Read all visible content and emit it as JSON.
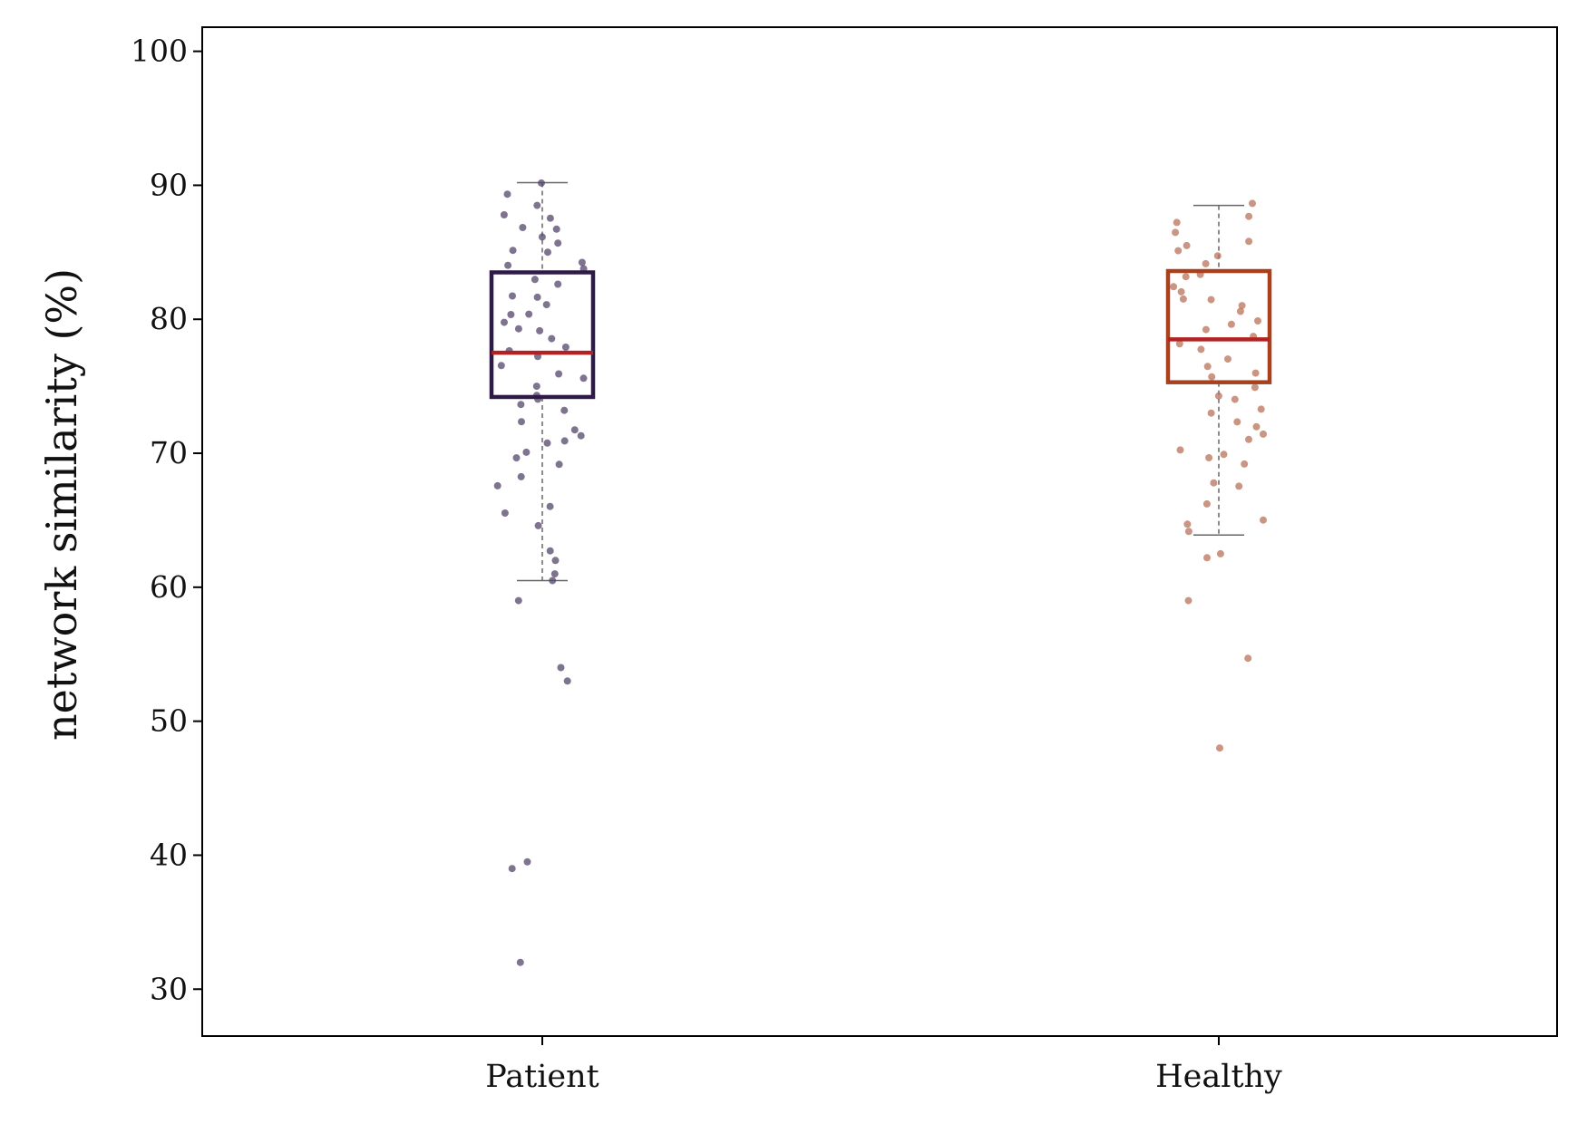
{
  "chart_data": {
    "type": "box",
    "ylabel": "network similarity (%)",
    "xlabel": "",
    "title": "",
    "ylim": [
      26.5,
      101.8
    ],
    "yticks": [
      30,
      40,
      50,
      60,
      70,
      80,
      90,
      100
    ],
    "yticklabels": [
      "30",
      "40",
      "50",
      "60",
      "70",
      "80",
      "90",
      "100"
    ],
    "grid": false,
    "categories": [
      "Patient",
      "Healthy"
    ],
    "series": [
      {
        "category": "Patient",
        "color": "#2e1a47",
        "point_color": "#54456a",
        "whisker_low": 60.5,
        "q1": 74.2,
        "median": 77.5,
        "q3": 83.5,
        "whisker_high": 90.2,
        "outliers": [
          59.0,
          54.0,
          53.0,
          39.5,
          39.0,
          32.0,
          62.0,
          61.0,
          60.5
        ],
        "points_sample": [
          90.2,
          89.2,
          88.5,
          88.0,
          87.5,
          87.0,
          86.5,
          86.0,
          85.5,
          85.0,
          84.9,
          84.5,
          84.0,
          83.6,
          83.0,
          82.5,
          82.0,
          81.5,
          81.0,
          80.5,
          80.3,
          80.0,
          79.5,
          79.0,
          78.5,
          78.0,
          77.5,
          77.0,
          76.5,
          76.0,
          75.5,
          75.0,
          74.5,
          74.0,
          73.5,
          73.0,
          72.5,
          72.0,
          71.5,
          71.0,
          70.5,
          70.0,
          69.6,
          69.3,
          68.5,
          67.5,
          66.0,
          65.8,
          64.8,
          62.7
        ]
      },
      {
        "category": "Healthy",
        "color": "#a8401e",
        "point_color": "#b8735a",
        "whisker_low": 63.9,
        "q1": 75.3,
        "median": 78.5,
        "q3": 83.6,
        "whisker_high": 88.5,
        "outliers": [
          62.5,
          62.2,
          59.0,
          54.7,
          48.0
        ],
        "points_sample": [
          88.5,
          87.5,
          87.0,
          86.5,
          86.0,
          85.5,
          85.0,
          84.5,
          84.0,
          83.5,
          83.0,
          82.5,
          82.0,
          81.5,
          81.2,
          81.0,
          80.5,
          80.0,
          79.5,
          79.0,
          78.5,
          78.0,
          77.5,
          77.0,
          76.5,
          76.0,
          75.5,
          75.0,
          74.5,
          74.0,
          73.5,
          73.0,
          72.5,
          72.0,
          71.5,
          71.0,
          70.5,
          70.0,
          69.8,
          69.2,
          68.0,
          67.3,
          66.2,
          65.1,
          64.8,
          64.0
        ]
      }
    ]
  }
}
